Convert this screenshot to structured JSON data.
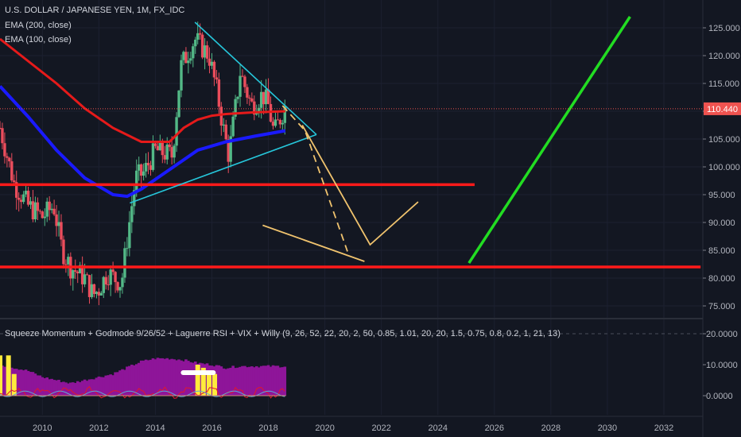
{
  "header": {
    "title": "U.S. DOLLAR / JAPANESE YEN, 1M, FX_IDC",
    "ema200": "EMA (200, close)",
    "ema100": "EMA (100, close)"
  },
  "indicator": {
    "label": "Squeeze Momentum + Godmode 9/26/52 + Laguerre RSI + VIX + Willy (9, 26, 52, 22, 20, 2, 50, 0.85, 1.01, 20, 20, 1.5, 0.75, 0.8, 0.2, 1, 21, 13)"
  },
  "colors": {
    "background": "#131722",
    "up_candle": "#53b987",
    "down_candle": "#eb4d5c",
    "ema200": "#e61a1a",
    "ema100": "#1a1aff",
    "triangle": "#26c6da",
    "projection": "#f0c36e",
    "support": "#ff1a1a",
    "target_line": "#22dd22",
    "price_badge": "#ef5350",
    "momentum": "#8e1599",
    "squeeze": "#ffeb3b"
  },
  "chart_data": [
    {
      "type": "candlestick",
      "title": "U.S. DOLLAR / JAPANESE YEN, 1M, FX_IDC",
      "x_ticks": [
        "2010",
        "2012",
        "2014",
        "2016",
        "2018",
        "2020",
        "2022",
        "2024",
        "2026",
        "2028",
        "2030",
        "2032"
      ],
      "y_ticks": [
        "125.000",
        "120.000",
        "115.000",
        "110.000",
        "105.000",
        "100.000",
        "95.000",
        "90.000",
        "85.000",
        "80.000",
        "75.000"
      ],
      "ylim": [
        73,
        127
      ],
      "last_price": "110.440",
      "price_path": [
        [
          2008.5,
          107
        ],
        [
          2009.0,
          97
        ],
        [
          2009.5,
          93
        ],
        [
          2010.0,
          91
        ],
        [
          2010.4,
          93
        ],
        [
          2010.7,
          85
        ],
        [
          2011.0,
          82
        ],
        [
          2011.5,
          80
        ],
        [
          2011.8,
          77
        ],
        [
          2012.0,
          78
        ],
        [
          2012.3,
          81
        ],
        [
          2012.8,
          79
        ],
        [
          2013.0,
          87
        ],
        [
          2013.3,
          98
        ],
        [
          2013.6,
          99
        ],
        [
          2014.0,
          103
        ],
        [
          2014.6,
          102
        ],
        [
          2014.9,
          118
        ],
        [
          2015.4,
          123
        ],
        [
          2015.9,
          120
        ],
        [
          2016.2,
          113
        ],
        [
          2016.4,
          107
        ],
        [
          2016.6,
          102
        ],
        [
          2016.9,
          113
        ],
        [
          2017.0,
          117
        ],
        [
          2017.4,
          111
        ],
        [
          2017.8,
          113
        ],
        [
          2018.0,
          111
        ],
        [
          2018.2,
          106
        ],
        [
          2018.6,
          111
        ]
      ],
      "ema200": [
        [
          2008.5,
          123
        ],
        [
          2009.5,
          119
        ],
        [
          2010.5,
          115
        ],
        [
          2011.5,
          110.5
        ],
        [
          2012.5,
          107
        ],
        [
          2013.5,
          104.5
        ],
        [
          2014.5,
          104.5
        ],
        [
          2015.0,
          107
        ],
        [
          2015.5,
          108.5
        ],
        [
          2016.0,
          109.2
        ],
        [
          2016.5,
          109.5
        ],
        [
          2017.5,
          109.8
        ],
        [
          2018.6,
          110
        ]
      ],
      "ema100": [
        [
          2008.5,
          114.5
        ],
        [
          2009.5,
          109
        ],
        [
          2010.5,
          103
        ],
        [
          2011.5,
          98
        ],
        [
          2012.5,
          95
        ],
        [
          2013.0,
          94.7
        ],
        [
          2013.5,
          96
        ],
        [
          2014.5,
          99.5
        ],
        [
          2015.5,
          103
        ],
        [
          2016.5,
          104.5
        ],
        [
          2017.5,
          105.5
        ],
        [
          2018.6,
          106.5
        ]
      ],
      "triangle": {
        "top": [
          2015.4,
          126
        ],
        "apex": [
          2019.7,
          105.8
        ],
        "bottom": [
          2013.1,
          93.5
        ]
      },
      "projection_dashed": [
        [
          2018.5,
          111
        ],
        [
          2019.3,
          106.5
        ],
        [
          2020.8,
          84.8
        ]
      ],
      "projection_solid": [
        [
          2019.2,
          107.5
        ],
        [
          2021.6,
          86
        ],
        [
          2023.3,
          93.7
        ]
      ],
      "projection_lower": [
        [
          2017.8,
          89.5
        ],
        [
          2021.4,
          83
        ]
      ],
      "support_lines": [
        {
          "price": 96.8,
          "x_start": 2008.5,
          "x_end": 2025.3
        },
        {
          "price": 82.0,
          "x_start": 2008.5,
          "x_end": 2033.3
        }
      ],
      "target_line": [
        [
          2025.1,
          82.7
        ],
        [
          2030.8,
          127
        ]
      ]
    },
    {
      "type": "bar",
      "title": "Squeeze Momentum + Godmode 9/26/52 + Laguerre RSI + VIX + Willy",
      "y_ticks": [
        "20.0000",
        "10.0000",
        "0.0000"
      ],
      "ylim": [
        -4,
        22
      ],
      "momentum": [
        [
          2008.5,
          10
        ],
        [
          2009.0,
          9
        ],
        [
          2009.5,
          8
        ],
        [
          2010.0,
          6
        ],
        [
          2010.5,
          5
        ],
        [
          2011.0,
          4
        ],
        [
          2011.5,
          5
        ],
        [
          2012.0,
          6
        ],
        [
          2012.5,
          7
        ],
        [
          2013.0,
          9
        ],
        [
          2013.5,
          11
        ],
        [
          2014.0,
          12
        ],
        [
          2014.5,
          12
        ],
        [
          2015.0,
          11.5
        ],
        [
          2015.5,
          10.5
        ],
        [
          2016.0,
          10
        ],
        [
          2016.5,
          9
        ],
        [
          2017.0,
          9.5
        ],
        [
          2018.0,
          9.5
        ],
        [
          2018.6,
          9.5
        ]
      ],
      "squeeze_bars": [
        [
          2008.5,
          13
        ],
        [
          2008.8,
          13
        ],
        [
          2009.0,
          7
        ],
        [
          2015.5,
          10
        ],
        [
          2015.7,
          9
        ],
        [
          2015.9,
          8
        ],
        [
          2016.1,
          7
        ]
      ]
    }
  ]
}
